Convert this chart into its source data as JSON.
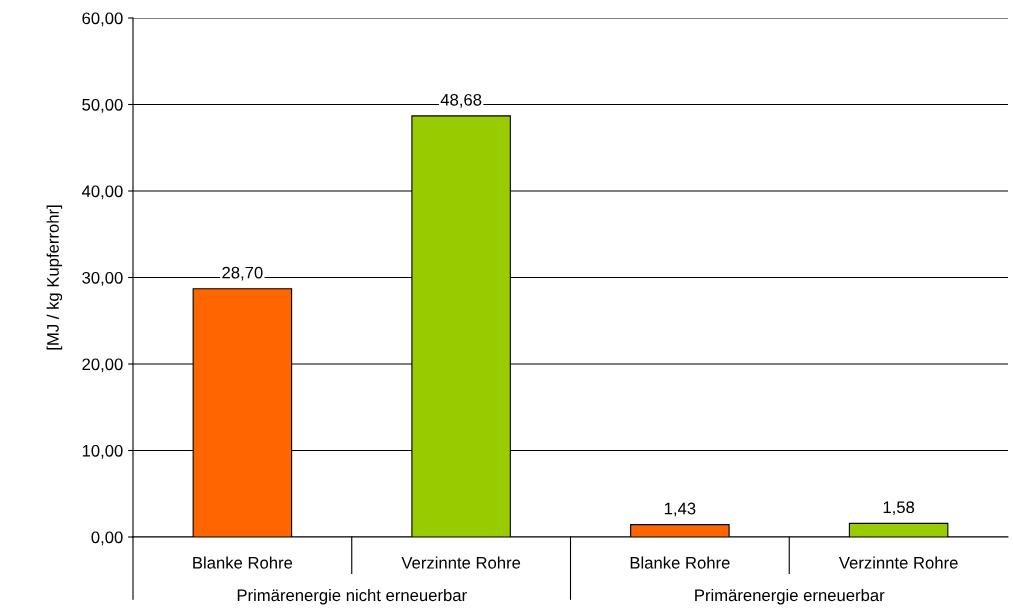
{
  "chart_data": {
    "type": "bar",
    "ylabel": "[MJ / kg Kupferrohr]",
    "categories": [
      "Blanke Rohre",
      "Verzinnte Rohre",
      "Blanke Rohre",
      "Verzinnte Rohre"
    ],
    "values": [
      28.7,
      48.68,
      1.43,
      1.58
    ],
    "colors": [
      "#ff6600",
      "#99cc00",
      "#ff6600",
      "#99cc00"
    ],
    "value_labels": [
      "28,70",
      "48,68",
      "1,43",
      "1,58"
    ],
    "annotations": [
      "Primärenergie nicht erneuerbar",
      "Primärenergie erneuerbar"
    ],
    "ylim": [
      0,
      60
    ],
    "yticks": [
      {
        "value": 0,
        "label": "0,00"
      },
      {
        "value": 10,
        "label": "10,00"
      },
      {
        "value": 20,
        "label": "20,00"
      },
      {
        "value": 30,
        "label": "30,00"
      },
      {
        "value": 40,
        "label": "40,00"
      },
      {
        "value": 50,
        "label": "50,00"
      },
      {
        "value": 60,
        "label": "60,00"
      }
    ],
    "grid": "y"
  }
}
